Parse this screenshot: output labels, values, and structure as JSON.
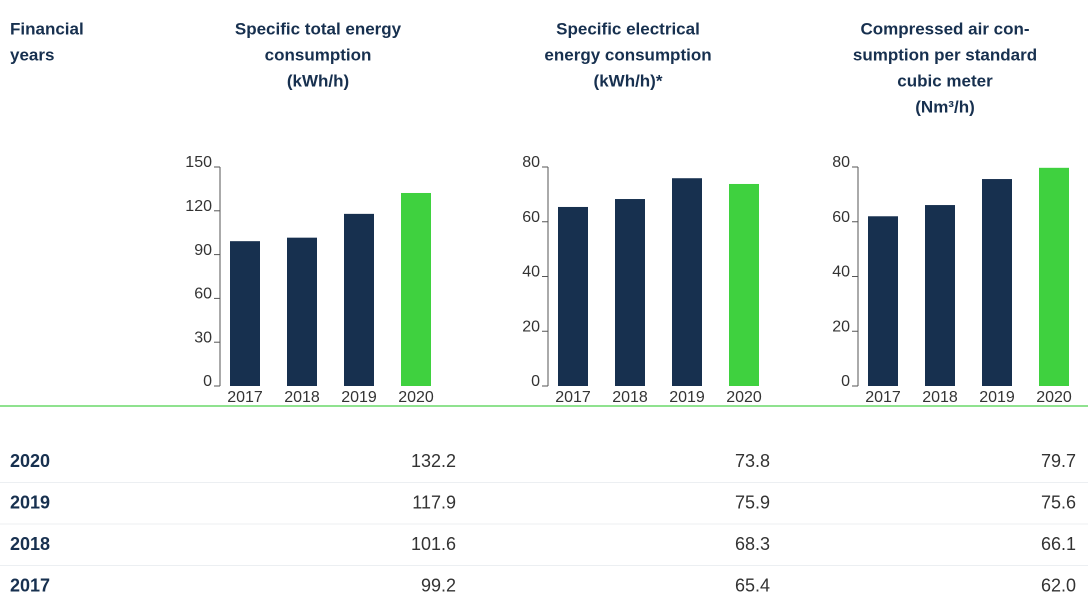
{
  "header": {
    "title": [
      "Financial",
      "years"
    ]
  },
  "chart_data": [
    {
      "type": "bar",
      "title": [
        "Specific total energy",
        "consumption",
        "(kWh/h)"
      ],
      "categories": [
        "2017",
        "2018",
        "2019",
        "2020"
      ],
      "values": [
        99.2,
        101.6,
        117.9,
        132.2
      ],
      "colors": [
        "#17304f",
        "#17304f",
        "#17304f",
        "#3fd13f"
      ],
      "ylim": [
        0,
        150
      ],
      "yticks": [
        0,
        30,
        60,
        90,
        120,
        150
      ]
    },
    {
      "type": "bar",
      "title": [
        "Specific electrical",
        "energy consumption",
        "(kWh/h)*"
      ],
      "categories": [
        "2017",
        "2018",
        "2019",
        "2020"
      ],
      "values": [
        65.4,
        68.3,
        75.9,
        73.8
      ],
      "colors": [
        "#17304f",
        "#17304f",
        "#17304f",
        "#3fd13f"
      ],
      "ylim": [
        0,
        80
      ],
      "yticks": [
        0,
        20,
        40,
        60,
        80
      ]
    },
    {
      "type": "bar",
      "title": [
        "Compressed air con-",
        "sumption per standard",
        "cubic meter",
        "(Nm³/h)"
      ],
      "categories": [
        "2017",
        "2018",
        "2019",
        "2020"
      ],
      "values": [
        62.0,
        66.1,
        75.6,
        79.7
      ],
      "colors": [
        "#17304f",
        "#17304f",
        "#17304f",
        "#3fd13f"
      ],
      "ylim": [
        0,
        80
      ],
      "yticks": [
        0,
        20,
        40,
        60,
        80
      ]
    }
  ],
  "table": {
    "rows": [
      [
        "2020",
        "132.2",
        "73.8",
        "79.7"
      ],
      [
        "2019",
        "117.9",
        "75.9",
        "75.6"
      ],
      [
        "2018",
        "101.6",
        "68.3",
        "66.1"
      ],
      [
        "2017",
        "99.2",
        "65.4",
        "62.0"
      ]
    ]
  }
}
